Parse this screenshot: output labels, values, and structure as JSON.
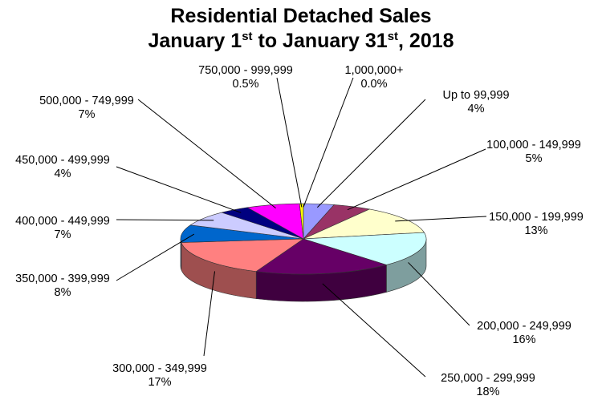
{
  "chart_data": {
    "type": "pie",
    "title_line1": "Residential Detached Sales",
    "title_line2": {
      "p1": "January 1",
      "s1": "st",
      "p2": " to January 31",
      "s2": "st",
      "p3": ", 2018"
    },
    "slices": [
      {
        "label": "Up to 99,999",
        "pct_text": "4%",
        "value": 4,
        "color": "#9999ff"
      },
      {
        "label": "100,000 - 149,999",
        "pct_text": "5%",
        "value": 5,
        "color": "#993366"
      },
      {
        "label": "150,000 - 199,999",
        "pct_text": "13%",
        "value": 13,
        "color": "#ffffcc"
      },
      {
        "label": "200,000 - 249,999",
        "pct_text": "16%",
        "value": 16,
        "color": "#ccffff"
      },
      {
        "label": "250,000 - 299,999",
        "pct_text": "18%",
        "value": 18,
        "color": "#660066"
      },
      {
        "label": "300,000 - 349,999",
        "pct_text": "17%",
        "value": 17,
        "color": "#ff8080"
      },
      {
        "label": "350,000 - 399,999",
        "pct_text": "8%",
        "value": 8,
        "color": "#0066cc"
      },
      {
        "label": "400,000 - 449,999",
        "pct_text": "7%",
        "value": 7,
        "color": "#ccccff"
      },
      {
        "label": "450,000 - 499,999",
        "pct_text": "4%",
        "value": 4,
        "color": "#000080"
      },
      {
        "label": "500,000 - 749,999",
        "pct_text": "7%",
        "value": 7,
        "color": "#ff00ff"
      },
      {
        "label": "750,000 - 999,999",
        "pct_text": "0.5%",
        "value": 0.5,
        "color": "#ffff00"
      },
      {
        "label": "1,000,000+",
        "pct_text": "0.0%",
        "value": 0,
        "color": "#00ffff"
      }
    ]
  }
}
